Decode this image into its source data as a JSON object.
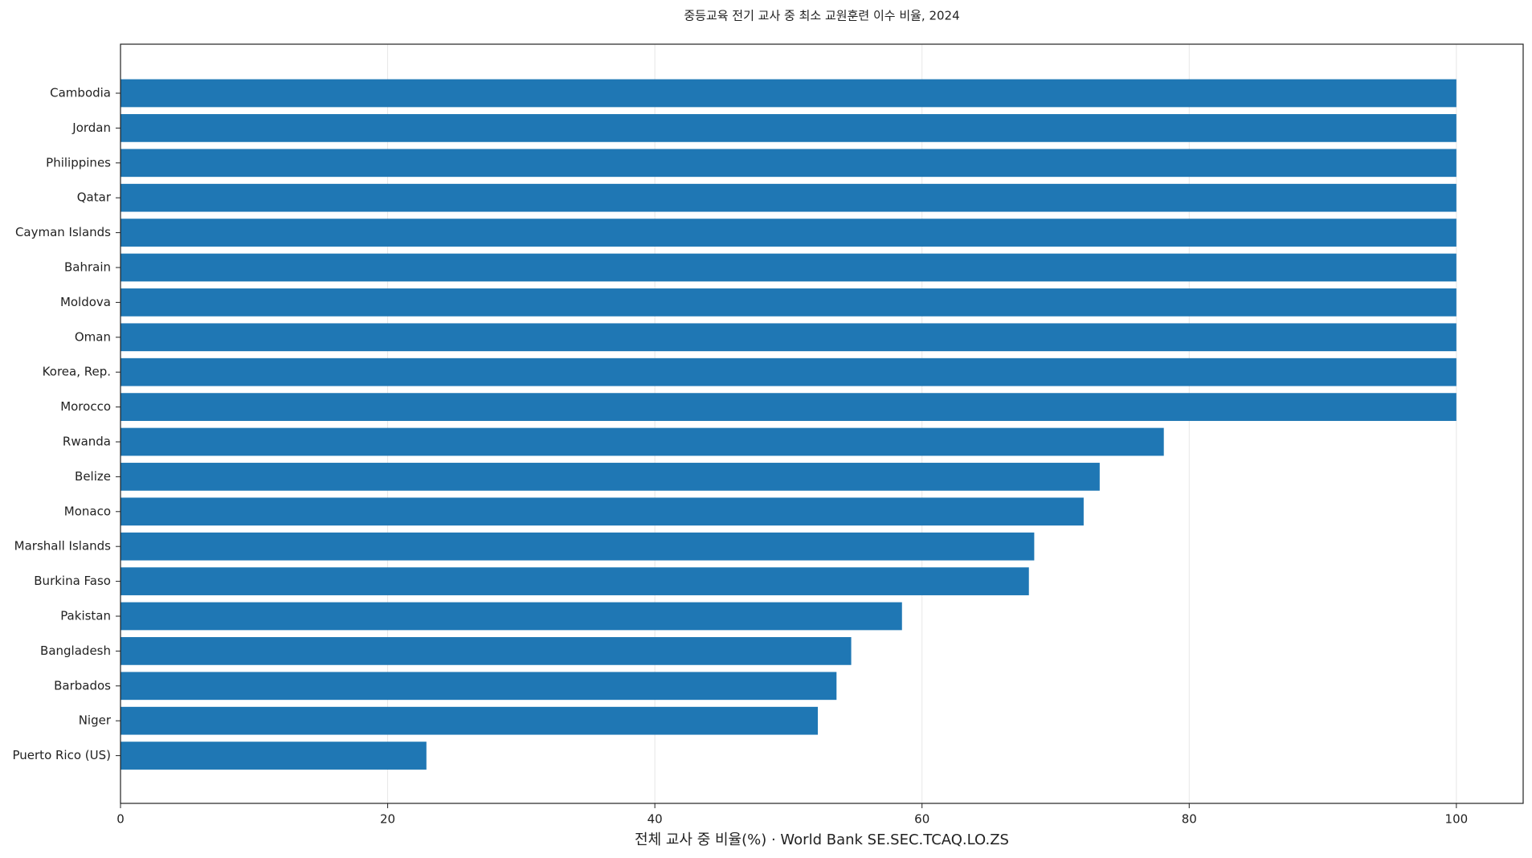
{
  "chart_data": {
    "type": "barh",
    "title": "중등교육 전기 교사 중 최소 교원훈련 이수 비율, 2024",
    "x_label": "전체 교사 중 비율(%) · World Bank SE.SEC.TCAQ.LO.ZS",
    "categories": [
      "Cambodia",
      "Jordan",
      "Philippines",
      "Qatar",
      "Cayman Islands",
      "Bahrain",
      "Moldova",
      "Oman",
      "Korea, Rep.",
      "Morocco",
      "Rwanda",
      "Belize",
      "Monaco",
      "Marshall Islands",
      "Burkina Faso",
      "Pakistan",
      "Bangladesh",
      "Barbados",
      "Niger",
      "Puerto Rico (US)"
    ],
    "values": [
      100,
      100,
      100,
      100,
      100,
      100,
      100,
      100,
      100,
      100,
      78.1,
      73.3,
      72.1,
      68.4,
      68.0,
      58.5,
      54.7,
      53.6,
      52.2,
      22.9
    ],
    "color": "#1f77b4",
    "xlim": [
      0,
      105
    ],
    "xticks": [
      0,
      20,
      40,
      60,
      80,
      100
    ],
    "grid": true
  }
}
